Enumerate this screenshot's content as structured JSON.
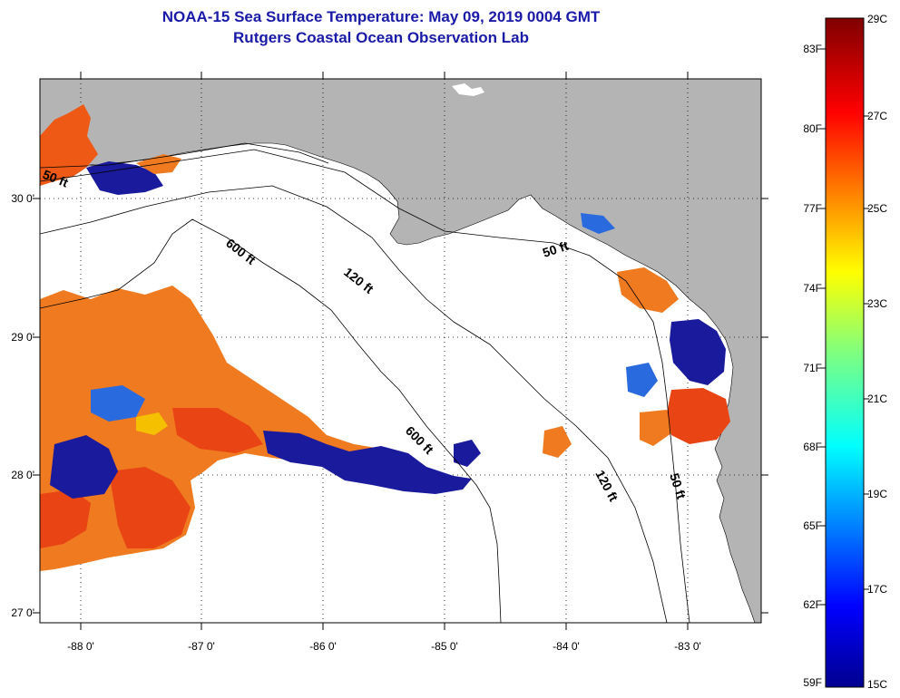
{
  "header": {
    "title": "NOAA-15 Sea Surface Temperature:  May 09, 2019 0004 GMT",
    "subtitle": "Rutgers Coastal Ocean Observation Lab"
  },
  "axes": {
    "lat_labels": [
      "30 0'",
      "29 0'",
      "28 0'",
      "27 0'"
    ],
    "lon_labels": [
      "-88 0'",
      "-87 0'",
      "-86 0'",
      "-85 0'",
      "-84 0'",
      "-83 0'"
    ]
  },
  "isobaths": {
    "label_50ft_west": "50 ft",
    "label_600ft_north": "600 ft",
    "label_120ft_north": "120 ft",
    "label_50ft_east": "50 ft",
    "label_600ft_south": "600 ft",
    "label_120ft_south": "120 ft",
    "label_50ft_south": "50 ft"
  },
  "colorbar": {
    "fahrenheit": [
      "83F",
      "80F",
      "77F",
      "74F",
      "71F",
      "68F",
      "65F",
      "62F",
      "59F"
    ],
    "celsius": [
      "29C",
      "27C",
      "25C",
      "23C",
      "21C",
      "19C",
      "17C",
      "15C"
    ]
  },
  "colors": {
    "land": "#b4b4b4",
    "ocean": "#ffffff",
    "title": "#1a1aa8",
    "warm": "#ee5a16",
    "orange": "#f07a20",
    "cold": "#1a1a9c"
  }
}
